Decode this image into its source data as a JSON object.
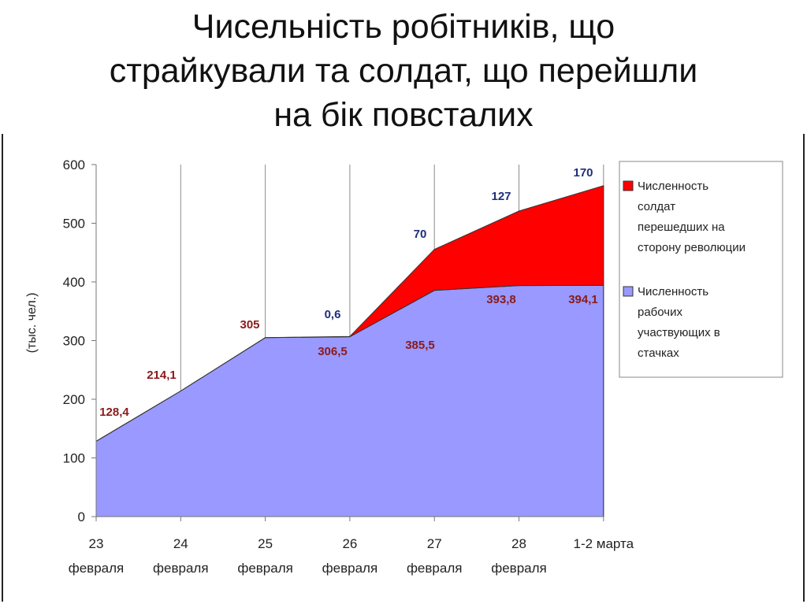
{
  "slide": {
    "title_lines": [
      "Чисельність робітників, що",
      "страйкували та солдат, що перейшли",
      "на бік повсталих"
    ]
  },
  "chart_data": {
    "type": "area",
    "stacked": true,
    "categories": [
      [
        "23",
        "февраля"
      ],
      [
        "24",
        "февраля"
      ],
      [
        "25",
        "февраля"
      ],
      [
        "26",
        "февраля"
      ],
      [
        "27",
        "февраля"
      ],
      [
        "28",
        "февраля"
      ],
      [
        "1-2 марта",
        ""
      ]
    ],
    "ylabel": "(тыс. чел.)",
    "ylim": [
      0,
      600
    ],
    "yticks": [
      0,
      100,
      200,
      300,
      400,
      500,
      600
    ],
    "vertical_gridlines": true,
    "legend_position": "right",
    "series": [
      {
        "name": "Численность рабочих участвующих в стачках",
        "legend_lines": [
          "Численность",
          "рабочих",
          "участвующих в",
          "стачках"
        ],
        "color": "#9999ff",
        "values": [
          128.4,
          214.1,
          305,
          306.5,
          385.5,
          393.8,
          394.1
        ],
        "labels": [
          "128,4",
          "214,1",
          "305",
          "306,5",
          "385,5",
          "393,8",
          "394,1"
        ],
        "label_color": "#8b1a1a"
      },
      {
        "name": "Численность солдат перешедших на сторону революции",
        "legend_lines": [
          "Численность",
          "солдат",
          "перешедших на",
          "сторону революции"
        ],
        "color": "#ff0000",
        "values": [
          0,
          0,
          0,
          0.6,
          70,
          127,
          170
        ],
        "labels": [
          "",
          "",
          "",
          "0,6",
          "70",
          "127",
          "170"
        ],
        "label_color": "#1f2d7a"
      }
    ]
  }
}
